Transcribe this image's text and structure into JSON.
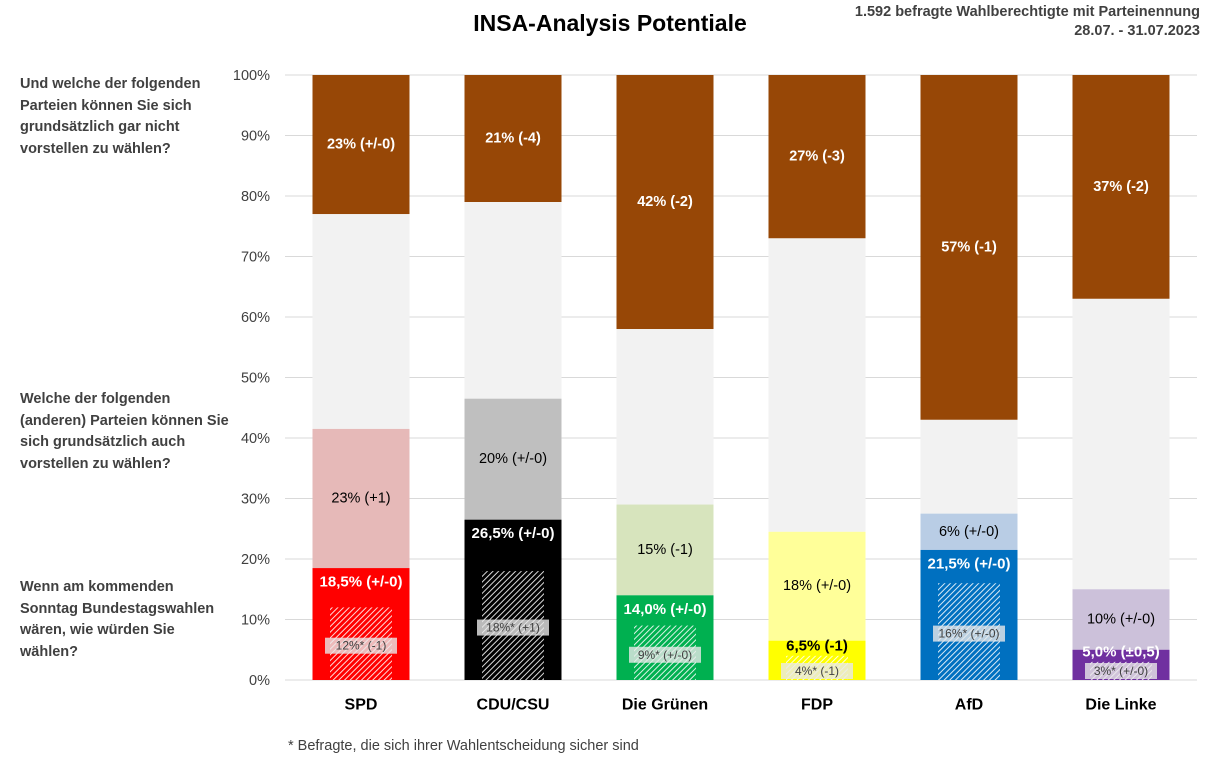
{
  "title": "INSA-Analysis Potentiale",
  "meta": {
    "line1": "1.592 befragte Wahlberechtigte mit Parteinennung",
    "line2": "28.07. - 31.07.2023"
  },
  "questions": {
    "q1": "Und welche der folgenden Parteien können Sie sich grundsätzlich gar nicht vorstellen zu wählen?",
    "q2": "Welche der folgenden (anderen) Parteien können Sie sich grundsätzlich auch vorstellen zu wählen?",
    "q3": "Wenn am kommenden Sonntag Bundestagswahlen wären, wie würden Sie wählen?"
  },
  "footnote": "* Befragte, die sich ihrer Wahlentscheidung sicher sind",
  "colors": {
    "never": "#974706",
    "neutral": "#f2f2f2",
    "grid": "#d9d9d9"
  },
  "chart_data": {
    "type": "bar",
    "stacked": true,
    "ylim": [
      0,
      100
    ],
    "yticks": [
      "0%",
      "10%",
      "20%",
      "30%",
      "40%",
      "50%",
      "60%",
      "70%",
      "80%",
      "90%",
      "100%"
    ],
    "grid": true,
    "categories": [
      "SPD",
      "CDU/CSU",
      "Die Grünen",
      "FDP",
      "AfD",
      "Die Linke"
    ],
    "parties": [
      {
        "name": "SPD",
        "vote": 18.5,
        "vote_label": "18,5% (+/-0)",
        "vote_color": "#ff0000",
        "vote_text_color": "#ffffff",
        "sure": 12,
        "sure_label": "12%* (-1)",
        "potential": 23,
        "potential_label": "23% (+1)",
        "potential_color": "#e6b9b8",
        "never": 23,
        "never_label": "23% (+/-0)"
      },
      {
        "name": "CDU/CSU",
        "vote": 26.5,
        "vote_label": "26,5% (+/-0)",
        "vote_color": "#000000",
        "vote_text_color": "#ffffff",
        "sure": 18,
        "sure_label": "18%* (+1)",
        "potential": 20,
        "potential_label": "20% (+/-0)",
        "potential_color": "#bfbfbf",
        "never": 21,
        "never_label": "21% (-4)"
      },
      {
        "name": "Die Grünen",
        "vote": 14.0,
        "vote_label": "14,0% (+/-0)",
        "vote_color": "#00b050",
        "vote_text_color": "#ffffff",
        "sure": 9,
        "sure_label": "9%* (+/-0)",
        "potential": 15,
        "potential_label": "15% (-1)",
        "potential_color": "#d7e4bd",
        "never": 42,
        "never_label": "42% (-2)"
      },
      {
        "name": "FDP",
        "vote": 6.5,
        "vote_label": "6,5% (-1)",
        "vote_color": "#ffff00",
        "vote_text_color": "#000000",
        "sure": 4,
        "sure_label": "4%* (-1)",
        "potential": 18,
        "potential_label": "18% (+/-0)",
        "potential_color": "#ffff99",
        "never": 27,
        "never_label": "27% (-3)"
      },
      {
        "name": "AfD",
        "vote": 21.5,
        "vote_label": "21,5% (+/-0)",
        "vote_color": "#0070c0",
        "vote_text_color": "#ffffff",
        "sure": 16,
        "sure_label": "16%* (+/-0)",
        "potential": 6,
        "potential_label": "6% (+/-0)",
        "potential_color": "#b9cde5",
        "never": 57,
        "never_label": "57% (-1)"
      },
      {
        "name": "Die Linke",
        "vote": 5.0,
        "vote_label": "5,0% (±0,5)",
        "vote_color": "#7030a0",
        "vote_text_color": "#ffffff",
        "sure": 3,
        "sure_label": "3%* (+/-0)",
        "potential": 10,
        "potential_label": "10% (+/-0)",
        "potential_color": "#ccc1da",
        "never": 37,
        "never_label": "37% (-2)"
      }
    ]
  }
}
